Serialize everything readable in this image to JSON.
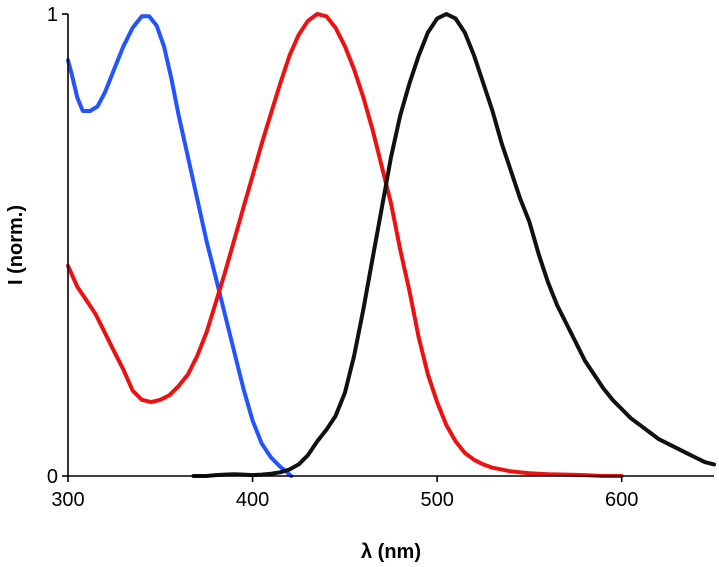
{
  "chart_data": {
    "type": "line",
    "title": "",
    "xlabel": "λ (nm)",
    "ylabel": "I (norm.)",
    "xlim": [
      300,
      650
    ],
    "ylim": [
      0,
      1
    ],
    "x_ticks": [
      300,
      400,
      500,
      600
    ],
    "y_ticks": [
      0,
      1
    ],
    "grid": false,
    "legend": "none",
    "series": [
      {
        "color": "#2255ff",
        "x": [
          300,
          302,
          305,
          308,
          312,
          316,
          320,
          325,
          330,
          335,
          340,
          344,
          348,
          352,
          356,
          360,
          365,
          370,
          375,
          380,
          385,
          390,
          395,
          400,
          405,
          410,
          415,
          418,
          421
        ],
        "y": [
          0.9,
          0.87,
          0.82,
          0.79,
          0.79,
          0.8,
          0.83,
          0.88,
          0.93,
          0.97,
          0.995,
          0.995,
          0.975,
          0.93,
          0.86,
          0.78,
          0.69,
          0.6,
          0.51,
          0.43,
          0.35,
          0.27,
          0.19,
          0.12,
          0.07,
          0.04,
          0.02,
          0.01,
          0.0
        ]
      },
      {
        "color": "#ee1111",
        "x": [
          300,
          305,
          310,
          315,
          320,
          325,
          330,
          335,
          340,
          345,
          350,
          355,
          360,
          365,
          370,
          375,
          380,
          385,
          390,
          395,
          400,
          405,
          410,
          415,
          420,
          425,
          430,
          435,
          440,
          445,
          450,
          455,
          460,
          465,
          470,
          475,
          480,
          485,
          490,
          495,
          500,
          505,
          510,
          515,
          520,
          525,
          530,
          540,
          550,
          560,
          570,
          580,
          590,
          600
        ],
        "y": [
          0.455,
          0.41,
          0.38,
          0.35,
          0.31,
          0.27,
          0.23,
          0.185,
          0.165,
          0.16,
          0.165,
          0.175,
          0.195,
          0.22,
          0.26,
          0.31,
          0.375,
          0.44,
          0.51,
          0.58,
          0.65,
          0.72,
          0.785,
          0.85,
          0.91,
          0.955,
          0.985,
          1.0,
          0.995,
          0.97,
          0.93,
          0.88,
          0.82,
          0.75,
          0.67,
          0.59,
          0.49,
          0.4,
          0.3,
          0.22,
          0.16,
          0.11,
          0.075,
          0.05,
          0.035,
          0.025,
          0.018,
          0.01,
          0.006,
          0.004,
          0.003,
          0.002,
          0.0,
          0.0
        ]
      },
      {
        "color": "#111111",
        "x": [
          368,
          375,
          380,
          385,
          390,
          395,
          400,
          405,
          410,
          415,
          420,
          425,
          430,
          435,
          440,
          445,
          450,
          455,
          460,
          465,
          470,
          475,
          480,
          485,
          490,
          495,
          500,
          505,
          510,
          515,
          520,
          525,
          530,
          535,
          540,
          545,
          550,
          555,
          560,
          565,
          570,
          575,
          580,
          585,
          590,
          595,
          600,
          605,
          610,
          615,
          620,
          625,
          630,
          635,
          640,
          645,
          650
        ],
        "y": [
          0.0,
          0.0,
          0.002,
          0.003,
          0.004,
          0.003,
          0.002,
          0.003,
          0.005,
          0.008,
          0.014,
          0.025,
          0.045,
          0.075,
          0.1,
          0.13,
          0.18,
          0.26,
          0.36,
          0.47,
          0.58,
          0.69,
          0.78,
          0.85,
          0.91,
          0.96,
          0.99,
          1.0,
          0.99,
          0.96,
          0.91,
          0.85,
          0.79,
          0.72,
          0.66,
          0.6,
          0.55,
          0.48,
          0.42,
          0.37,
          0.33,
          0.29,
          0.25,
          0.22,
          0.19,
          0.165,
          0.145,
          0.125,
          0.11,
          0.095,
          0.08,
          0.07,
          0.06,
          0.05,
          0.04,
          0.03,
          0.025
        ]
      }
    ]
  }
}
